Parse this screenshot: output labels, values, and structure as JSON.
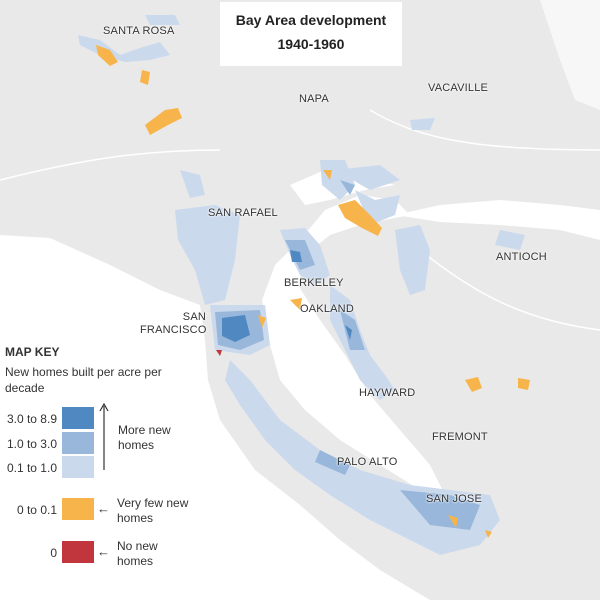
{
  "title": "Bay Area development",
  "subtitle": "1940-1960",
  "places": [
    "SANTA ROSA",
    "NAPA",
    "VACAVILLE",
    "SAN RAFAEL",
    "ANTIOCH",
    "BERKELEY",
    "OAKLAND",
    "SAN FRANCISCO",
    "HAYWARD",
    "FREMONT",
    "PALO ALTO",
    "SAN JOSE"
  ],
  "key": {
    "title": "MAP KEY",
    "description": "New homes built per acre per decade",
    "more_label": "More new homes",
    "items": [
      {
        "label": "3.0 to 8.9",
        "color": "#5088c2"
      },
      {
        "label": "1.0 to 3.0",
        "color": "#98b7db"
      },
      {
        "label": "0.1 to 1.0",
        "color": "#cbd9ed"
      },
      {
        "label": "0 to 0.1",
        "color": "#f6b44b",
        "note": "Very few new homes"
      },
      {
        "label": "0",
        "color": "#c0363c",
        "note": "No new homes"
      }
    ]
  }
}
